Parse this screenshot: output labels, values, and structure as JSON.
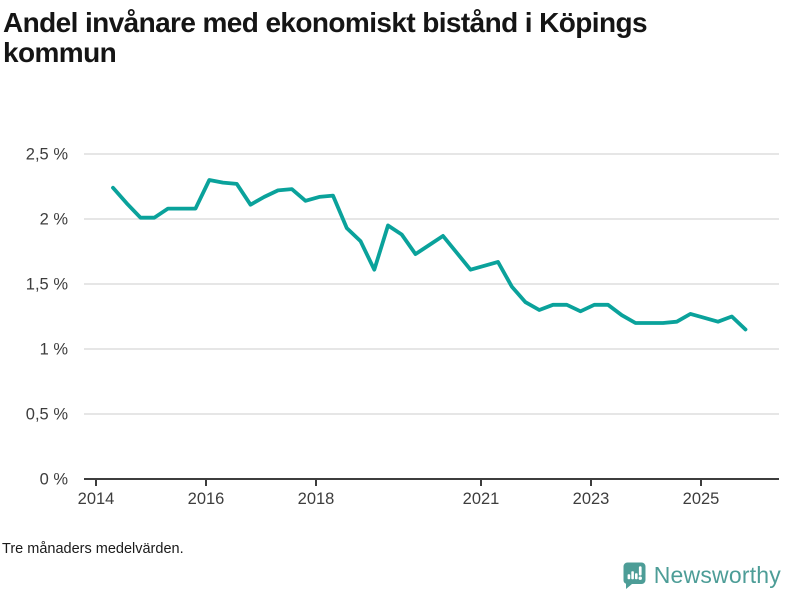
{
  "header": {
    "title": "Andel invånare med ekonomiskt bistånd i Köpings kommun"
  },
  "chart_data": {
    "type": "line",
    "title": "Andel invånare med ekonomiskt bistånd i Köpings kommun",
    "xlabel": "",
    "ylabel": "",
    "ylim": [
      0,
      2.5
    ],
    "xlim": [
      2013.78,
      2026.42
    ],
    "grid": "horizontal",
    "legend": "none",
    "line_color": "#0aa29b",
    "axis_color": "#3d3d3d",
    "gridline_color": "#dedede",
    "y_ticks": [
      {
        "value": 0,
        "label": "0 %"
      },
      {
        "value": 0.5,
        "label": "0,5 %"
      },
      {
        "value": 1,
        "label": "1 %"
      },
      {
        "value": 1.5,
        "label": "1,5 %"
      },
      {
        "value": 2,
        "label": "2 %"
      },
      {
        "value": 2.5,
        "label": "2,5 %"
      }
    ],
    "x_ticks": [
      {
        "value": 2014,
        "label": "2014"
      },
      {
        "value": 2016,
        "label": "2016"
      },
      {
        "value": 2018,
        "label": "2018"
      },
      {
        "value": 2021,
        "label": "2021"
      },
      {
        "value": 2023,
        "label": "2023"
      },
      {
        "value": 2025,
        "label": "2025"
      }
    ],
    "series": [
      {
        "name": "Andel invånare med ekonomiskt bistånd (tre månaders medelvärden)",
        "x_start": 2014.31,
        "x_step": 0.25,
        "values": [
          2.24,
          2.12,
          2.01,
          2.01,
          2.08,
          2.08,
          2.08,
          2.3,
          2.28,
          2.27,
          2.11,
          2.17,
          2.22,
          2.23,
          2.14,
          2.17,
          2.18,
          1.93,
          1.83,
          1.61,
          1.95,
          1.88,
          1.73,
          1.8,
          1.87,
          1.74,
          1.61,
          1.64,
          1.67,
          1.48,
          1.36,
          1.3,
          1.34,
          1.34,
          1.29,
          1.34,
          1.34,
          1.26,
          1.2,
          1.2,
          1.2,
          1.21,
          1.27,
          1.24,
          1.21,
          1.25,
          1.15
        ]
      }
    ]
  },
  "footer": {
    "note": "Tre månaders medelvärden."
  },
  "branding": {
    "wordmark": "Newsworthy",
    "icon": "newsworthy-speech-bubble-chart-icon",
    "color": "#4d9d97"
  }
}
